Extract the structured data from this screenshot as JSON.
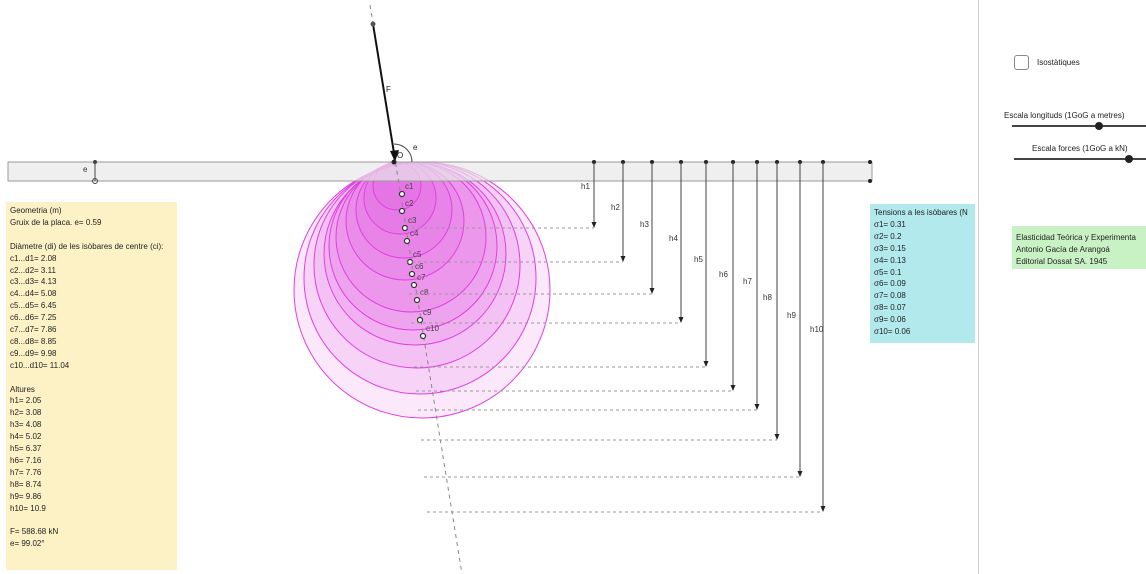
{
  "diagram": {
    "force_label": "F",
    "origin_label": "O",
    "angle_label": "e",
    "thickness_label": "e",
    "centers": [
      "c1",
      "c2",
      "c3",
      "c4",
      "c5",
      "c6",
      "c7",
      "c8",
      "c9",
      "c10"
    ],
    "heights": [
      "h1",
      "h2",
      "h3",
      "h4",
      "h5",
      "h6",
      "h7",
      "h8",
      "h9",
      "h10"
    ],
    "colors": {
      "isobar": "#e040e0",
      "plate": "#e8e8e8",
      "axis": "#888888"
    }
  },
  "geometry_box": {
    "title": "Geometria (m)",
    "thickness": "Gruix de la placa. e= 0.59",
    "diam_title": "Diàmetre (di) de les isòbares de centre (ci):",
    "diameters": [
      "c1...d1= 2.08",
      "c2...d2= 3.11",
      "c3...d3= 4.13",
      "c4...d4= 5.08",
      "c5...d5= 6.45",
      "c6...d6= 7.25",
      "c7...d7= 7.86",
      "c8...d8= 8.85",
      "c9...d9= 9.98",
      "c10...d10= 11.04"
    ],
    "heights_title": "Altures",
    "heights": [
      "h1= 2.05",
      "h2= 3.08",
      "h3= 4.08",
      "h4= 5.02",
      "h5= 6.37",
      "h6= 7.16",
      "h7= 7.76",
      "h8= 8.74",
      "h9= 9.86",
      "h10= 10.9"
    ],
    "force": "F= 588.68 kN",
    "angle": "e= 99.02°"
  },
  "tensions_box": {
    "title": "Tensions a les isòbares (N",
    "values": [
      "σ1= 0.31",
      "σ2= 0.2",
      "σ3= 0.15",
      "σ4= 0.13",
      "σ5= 0.1",
      "σ6= 0.09",
      "σ7= 0.08",
      "σ8= 0.07",
      "σ9= 0.06",
      "σ10= 0.06"
    ]
  },
  "reference_box": {
    "line1": "Elasticidad Teórica y Experimenta",
    "line2": "Antonio Gacía de Arangoá",
    "line3": "Editorial Dossat SA. 1945"
  },
  "controls": {
    "checkbox_label": "Isostàtiques",
    "checkbox_checked": false,
    "slider1_label": "Escala longituds (1GoG a metres)",
    "slider2_label": "Escala forces (1GoG a kN)"
  }
}
